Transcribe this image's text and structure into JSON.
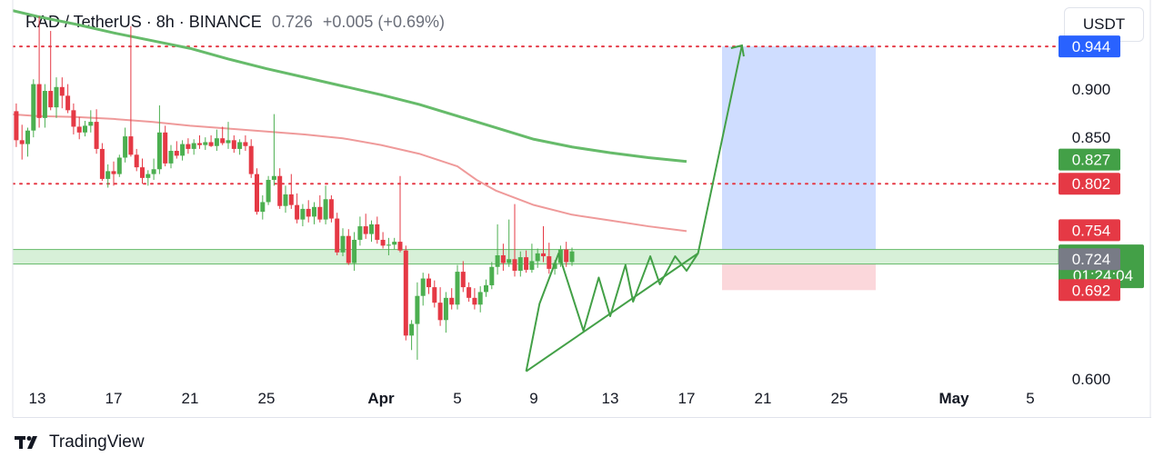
{
  "header": {
    "symbol": "RAD / TetherUS",
    "interval": "8h",
    "exchange": "BINANCE",
    "price": "0.726",
    "change": "+0.005 (+0.69%)"
  },
  "currency_button": "USDT",
  "branding": {
    "name": "TradingView"
  },
  "chart_data": {
    "type": "candlestick",
    "ylim": [
      0.588,
      0.992
    ],
    "y_ticks": [
      "0.600",
      "0.850",
      "0.900"
    ],
    "x_ticks": [
      {
        "label": "13",
        "day": 0
      },
      {
        "label": "17",
        "day": 4
      },
      {
        "label": "21",
        "day": 8
      },
      {
        "label": "25",
        "day": 12
      },
      {
        "label": "Apr",
        "day": 18
      },
      {
        "label": "5",
        "day": 22
      },
      {
        "label": "9",
        "day": 26
      },
      {
        "label": "13",
        "day": 30
      },
      {
        "label": "17",
        "day": 34
      },
      {
        "label": "21",
        "day": 38
      },
      {
        "label": "25",
        "day": 42
      },
      {
        "label": "May",
        "day": 48
      },
      {
        "label": "5",
        "day": 52
      }
    ],
    "price_labels": [
      {
        "value": 0.944,
        "text": "0.944",
        "color": "#2962ff"
      },
      {
        "value": 0.827,
        "text": "0.827",
        "color": "#43a047"
      },
      {
        "value": 0.802,
        "text": "0.802",
        "color": "#e53945"
      },
      {
        "value": 0.754,
        "text": "0.754",
        "color": "#e53945"
      },
      {
        "value": 0.726,
        "text": "0.726",
        "subtext": "01:24:04",
        "color": "#43a047"
      },
      {
        "value": 0.724,
        "text": "0.724",
        "color": "#787b86"
      },
      {
        "value": 0.692,
        "text": "0.692",
        "color": "#e53945"
      }
    ],
    "horizontal_levels": [
      {
        "value": 0.944,
        "style": "dotted",
        "color": "#e53945"
      },
      {
        "value": 0.802,
        "style": "dotted",
        "color": "#e53945"
      }
    ],
    "support_zone": {
      "from": 0.719,
      "to": 0.734,
      "color": "#a5d6a7"
    },
    "position": {
      "day_start": 21.3,
      "day_end": 23.4,
      "entry": 0.726,
      "target": 0.944,
      "stop": 0.692
    },
    "moving_averages": [
      {
        "color": "#66bb6a",
        "points": [
          [
            -1.5,
            0.982
          ],
          [
            0,
            0.975
          ],
          [
            2,
            0.967
          ],
          [
            4,
            0.958
          ],
          [
            6,
            0.95
          ],
          [
            8,
            0.942
          ],
          [
            10,
            0.931
          ],
          [
            12,
            0.921
          ],
          [
            14,
            0.912
          ],
          [
            16,
            0.903
          ],
          [
            18,
            0.894
          ],
          [
            20,
            0.884
          ],
          [
            22,
            0.872
          ],
          [
            24,
            0.86
          ],
          [
            26,
            0.848
          ],
          [
            28,
            0.84
          ],
          [
            30,
            0.834
          ],
          [
            32,
            0.829
          ],
          [
            34,
            0.825
          ]
        ]
      },
      {
        "color": "#ef9a9a",
        "points": [
          [
            -1.5,
            0.874
          ],
          [
            0,
            0.872
          ],
          [
            2,
            0.871
          ],
          [
            4,
            0.869
          ],
          [
            6,
            0.866
          ],
          [
            8,
            0.862
          ],
          [
            10,
            0.859
          ],
          [
            12,
            0.856
          ],
          [
            14,
            0.853
          ],
          [
            16,
            0.849
          ],
          [
            18,
            0.842
          ],
          [
            20,
            0.833
          ],
          [
            22,
            0.82
          ],
          [
            23,
            0.806
          ],
          [
            24,
            0.795
          ],
          [
            26,
            0.78
          ],
          [
            28,
            0.77
          ],
          [
            30,
            0.764
          ],
          [
            32,
            0.758
          ],
          [
            34,
            0.753
          ]
        ]
      }
    ],
    "pattern_lines": [
      {
        "points": [
          [
            25.6,
            0.608
          ],
          [
            34.6,
            0.73
          ]
        ],
        "color": "#43a047"
      },
      {
        "points": [
          [
            25.6,
            0.608
          ],
          [
            26.3,
            0.678
          ],
          [
            27.3,
            0.73
          ],
          [
            28.6,
            0.65
          ],
          [
            29.4,
            0.705
          ],
          [
            30.0,
            0.665
          ],
          [
            30.8,
            0.718
          ],
          [
            31.2,
            0.68
          ],
          [
            32.1,
            0.727
          ],
          [
            32.6,
            0.698
          ],
          [
            33.4,
            0.727
          ],
          [
            34.0,
            0.712
          ],
          [
            34.6,
            0.73
          ],
          [
            36.9,
            0.945
          ]
        ],
        "color": "#43a047"
      }
    ],
    "candles": [
      [
        -1.4,
        0.854,
        0.884,
        0.848,
        0.877
      ],
      [
        -1.1,
        0.877,
        0.885,
        0.84,
        0.847
      ],
      [
        -0.8,
        0.847,
        0.863,
        0.827,
        0.843
      ],
      [
        -0.5,
        0.843,
        0.86,
        0.83,
        0.857
      ],
      [
        -0.2,
        0.857,
        0.91,
        0.85,
        0.905
      ],
      [
        0.1,
        0.905,
        0.975,
        0.86,
        0.87
      ],
      [
        0.4,
        0.87,
        0.905,
        0.86,
        0.898
      ],
      [
        0.7,
        0.898,
        0.96,
        0.878,
        0.881
      ],
      [
        1.0,
        0.881,
        0.912,
        0.87,
        0.902
      ],
      [
        1.3,
        0.902,
        0.912,
        0.88,
        0.893
      ],
      [
        1.6,
        0.893,
        0.905,
        0.875,
        0.878
      ],
      [
        1.9,
        0.878,
        0.885,
        0.853,
        0.861
      ],
      [
        2.2,
        0.861,
        0.871,
        0.848,
        0.855
      ],
      [
        2.5,
        0.855,
        0.867,
        0.851,
        0.862
      ],
      [
        2.8,
        0.862,
        0.878,
        0.855,
        0.866
      ],
      [
        3.1,
        0.866,
        0.879,
        0.833,
        0.838
      ],
      [
        3.4,
        0.838,
        0.844,
        0.805,
        0.807
      ],
      [
        3.7,
        0.807,
        0.822,
        0.798,
        0.815
      ],
      [
        4.0,
        0.815,
        0.825,
        0.8,
        0.812
      ],
      [
        4.3,
        0.812,
        0.832,
        0.809,
        0.829
      ],
      [
        4.6,
        0.829,
        0.86,
        0.824,
        0.851
      ],
      [
        4.9,
        0.851,
        0.965,
        0.83,
        0.832
      ],
      [
        5.2,
        0.832,
        0.838,
        0.815,
        0.819
      ],
      [
        5.5,
        0.819,
        0.828,
        0.802,
        0.808
      ],
      [
        5.8,
        0.808,
        0.816,
        0.8,
        0.812
      ],
      [
        6.1,
        0.812,
        0.828,
        0.806,
        0.817
      ],
      [
        6.4,
        0.817,
        0.883,
        0.812,
        0.855
      ],
      [
        6.7,
        0.855,
        0.862,
        0.82,
        0.823
      ],
      [
        7.0,
        0.823,
        0.842,
        0.818,
        0.836
      ],
      [
        7.3,
        0.836,
        0.846,
        0.828,
        0.831
      ],
      [
        7.6,
        0.831,
        0.847,
        0.826,
        0.843
      ],
      [
        7.9,
        0.843,
        0.849,
        0.833,
        0.838
      ],
      [
        8.2,
        0.838,
        0.848,
        0.832,
        0.844
      ],
      [
        8.5,
        0.844,
        0.852,
        0.838,
        0.842
      ],
      [
        8.8,
        0.842,
        0.85,
        0.837,
        0.845
      ],
      [
        9.1,
        0.845,
        0.852,
        0.84,
        0.841
      ],
      [
        9.4,
        0.841,
        0.858,
        0.836,
        0.849
      ],
      [
        9.7,
        0.849,
        0.861,
        0.842,
        0.844
      ],
      [
        10.0,
        0.844,
        0.866,
        0.838,
        0.847
      ],
      [
        10.3,
        0.847,
        0.852,
        0.834,
        0.838
      ],
      [
        10.6,
        0.838,
        0.848,
        0.832,
        0.845
      ],
      [
        10.9,
        0.845,
        0.852,
        0.836,
        0.841
      ],
      [
        11.2,
        0.841,
        0.848,
        0.808,
        0.812
      ],
      [
        11.5,
        0.812,
        0.818,
        0.77,
        0.773
      ],
      [
        11.8,
        0.773,
        0.79,
        0.765,
        0.783
      ],
      [
        12.1,
        0.783,
        0.81,
        0.78,
        0.806
      ],
      [
        12.4,
        0.806,
        0.874,
        0.8,
        0.81
      ],
      [
        12.7,
        0.81,
        0.818,
        0.776,
        0.779
      ],
      [
        13.0,
        0.779,
        0.8,
        0.772,
        0.791
      ],
      [
        13.3,
        0.791,
        0.812,
        0.776,
        0.78
      ],
      [
        13.6,
        0.78,
        0.792,
        0.761,
        0.765
      ],
      [
        13.9,
        0.765,
        0.781,
        0.758,
        0.776
      ],
      [
        14.2,
        0.776,
        0.785,
        0.762,
        0.768
      ],
      [
        14.5,
        0.768,
        0.783,
        0.76,
        0.778
      ],
      [
        14.8,
        0.778,
        0.79,
        0.762,
        0.765
      ],
      [
        15.1,
        0.765,
        0.8,
        0.76,
        0.786
      ],
      [
        15.4,
        0.786,
        0.79,
        0.762,
        0.766
      ],
      [
        15.7,
        0.766,
        0.772,
        0.728,
        0.731
      ],
      [
        16.0,
        0.731,
        0.756,
        0.727,
        0.748
      ],
      [
        16.3,
        0.748,
        0.755,
        0.718,
        0.72
      ],
      [
        16.6,
        0.72,
        0.752,
        0.712,
        0.744
      ],
      [
        16.9,
        0.744,
        0.768,
        0.738,
        0.758
      ],
      [
        17.2,
        0.758,
        0.771,
        0.745,
        0.75
      ],
      [
        17.5,
        0.75,
        0.764,
        0.742,
        0.76
      ],
      [
        17.8,
        0.76,
        0.768,
        0.74,
        0.744
      ],
      [
        18.1,
        0.744,
        0.752,
        0.735,
        0.738
      ],
      [
        18.4,
        0.738,
        0.746,
        0.728,
        0.739
      ],
      [
        18.7,
        0.739,
        0.746,
        0.734,
        0.742
      ],
      [
        19.0,
        0.742,
        0.81,
        0.731,
        0.733
      ],
      [
        19.3,
        0.733,
        0.738,
        0.64,
        0.645
      ],
      [
        19.6,
        0.645,
        0.661,
        0.63,
        0.657
      ],
      [
        19.9,
        0.657,
        0.7,
        0.62,
        0.686
      ],
      [
        20.2,
        0.686,
        0.71,
        0.676,
        0.704
      ],
      [
        20.5,
        0.704,
        0.709,
        0.688,
        0.695
      ],
      [
        20.8,
        0.695,
        0.702,
        0.674,
        0.679
      ],
      [
        21.1,
        0.679,
        0.695,
        0.655,
        0.661
      ],
      [
        21.4,
        0.661,
        0.69,
        0.648,
        0.684
      ],
      [
        21.7,
        0.684,
        0.694,
        0.672,
        0.677
      ],
      [
        22.0,
        0.677,
        0.718,
        0.672,
        0.711
      ],
      [
        22.3,
        0.711,
        0.722,
        0.69,
        0.695
      ],
      [
        22.6,
        0.695,
        0.7,
        0.68,
        0.684
      ],
      [
        22.9,
        0.684,
        0.694,
        0.672,
        0.677
      ],
      [
        23.2,
        0.677,
        0.696,
        0.669,
        0.69
      ],
      [
        23.5,
        0.69,
        0.703,
        0.685,
        0.697
      ],
      [
        23.8,
        0.697,
        0.721,
        0.693,
        0.716
      ],
      [
        24.1,
        0.716,
        0.76,
        0.708,
        0.728
      ],
      [
        24.4,
        0.728,
        0.74,
        0.712,
        0.72
      ],
      [
        24.7,
        0.72,
        0.765,
        0.716,
        0.724
      ],
      [
        25.0,
        0.724,
        0.781,
        0.706,
        0.712
      ],
      [
        25.3,
        0.712,
        0.732,
        0.706,
        0.726
      ],
      [
        25.6,
        0.726,
        0.733,
        0.71,
        0.713
      ],
      [
        25.9,
        0.713,
        0.74,
        0.71,
        0.722
      ],
      [
        26.2,
        0.722,
        0.735,
        0.715,
        0.73
      ],
      [
        26.5,
        0.73,
        0.758,
        0.721,
        0.727
      ],
      [
        26.8,
        0.727,
        0.741,
        0.709,
        0.714
      ],
      [
        27.1,
        0.714,
        0.723,
        0.708,
        0.72
      ],
      [
        27.4,
        0.72,
        0.738,
        0.716,
        0.734
      ],
      [
        27.7,
        0.734,
        0.742,
        0.716,
        0.721
      ],
      [
        28.0,
        0.721,
        0.736,
        0.717,
        0.732
      ]
    ]
  }
}
